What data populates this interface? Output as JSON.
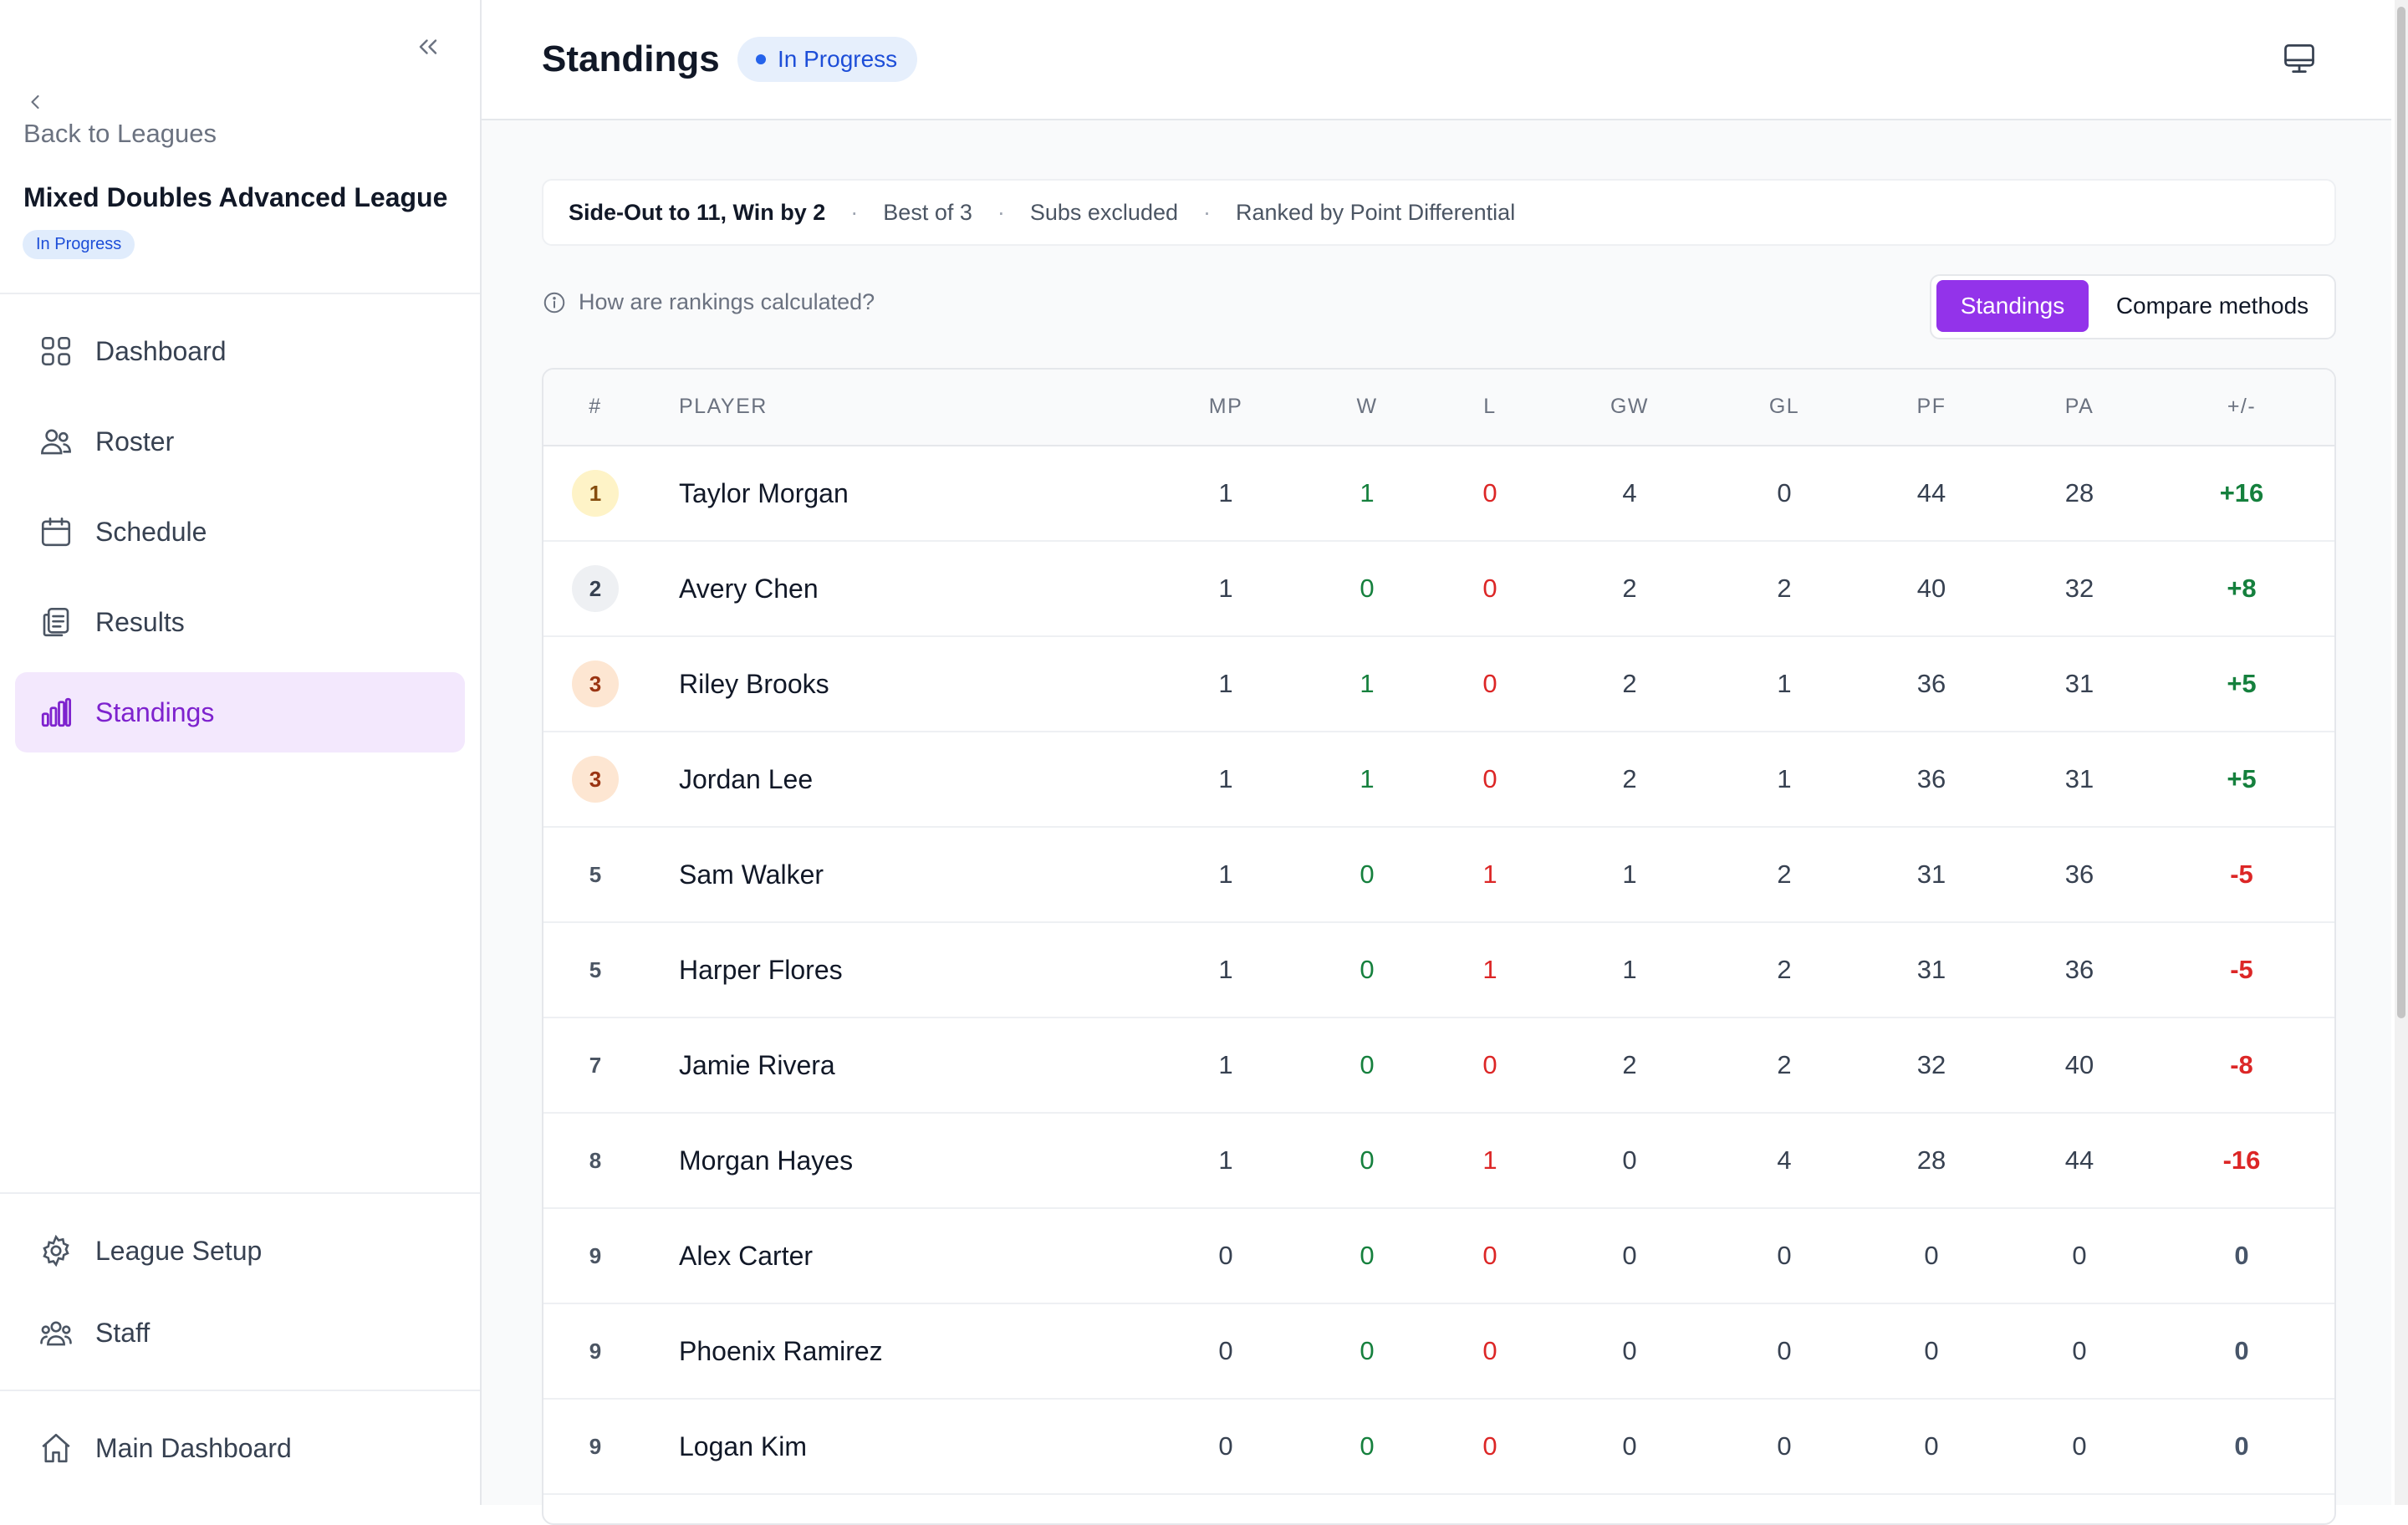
{
  "sidebar": {
    "back_label": "Back to Leagues",
    "league_name": "Mixed Doubles Advanced League",
    "league_status": "In Progress",
    "nav": [
      {
        "label": "Dashboard",
        "icon": "dashboard-icon"
      },
      {
        "label": "Roster",
        "icon": "users-icon"
      },
      {
        "label": "Schedule",
        "icon": "calendar-icon"
      },
      {
        "label": "Results",
        "icon": "clipboard-icon"
      },
      {
        "label": "Standings",
        "icon": "bar-chart-icon",
        "active": true
      }
    ],
    "footer_nav": [
      {
        "label": "League Setup",
        "icon": "gear-icon"
      },
      {
        "label": "Staff",
        "icon": "staff-icon"
      }
    ],
    "main_dashboard": {
      "label": "Main Dashboard",
      "icon": "home-icon"
    }
  },
  "header": {
    "title": "Standings",
    "status": "In Progress"
  },
  "rules": {
    "format": "Side-Out to 11, Win by 2",
    "match": "Best of 3",
    "subs": "Subs excluded",
    "ranking": "Ranked by Point Differential"
  },
  "help_text": "How are rankings calculated?",
  "view_toggle": {
    "standings": "Standings",
    "compare": "Compare methods"
  },
  "table": {
    "headers": [
      "#",
      "PLAYER",
      "MP",
      "W",
      "L",
      "GW",
      "GL",
      "PF",
      "PA",
      "+/-"
    ],
    "rows": [
      {
        "rank": "1",
        "medal": "gold",
        "player": "Taylor Morgan",
        "mp": "1",
        "w": "1",
        "l": "0",
        "gw": "4",
        "gl": "0",
        "pf": "44",
        "pa": "28",
        "diff": "+16"
      },
      {
        "rank": "2",
        "medal": "silver",
        "player": "Avery Chen",
        "mp": "1",
        "w": "0",
        "l": "0",
        "gw": "2",
        "gl": "2",
        "pf": "40",
        "pa": "32",
        "diff": "+8"
      },
      {
        "rank": "3",
        "medal": "bronze",
        "player": "Riley Brooks",
        "mp": "1",
        "w": "1",
        "l": "0",
        "gw": "2",
        "gl": "1",
        "pf": "36",
        "pa": "31",
        "diff": "+5"
      },
      {
        "rank": "3",
        "medal": "bronze",
        "player": "Jordan Lee",
        "mp": "1",
        "w": "1",
        "l": "0",
        "gw": "2",
        "gl": "1",
        "pf": "36",
        "pa": "31",
        "diff": "+5"
      },
      {
        "rank": "5",
        "medal": "plain",
        "player": "Sam Walker",
        "mp": "1",
        "w": "0",
        "l": "1",
        "gw": "1",
        "gl": "2",
        "pf": "31",
        "pa": "36",
        "diff": "-5"
      },
      {
        "rank": "5",
        "medal": "plain",
        "player": "Harper Flores",
        "mp": "1",
        "w": "0",
        "l": "1",
        "gw": "1",
        "gl": "2",
        "pf": "31",
        "pa": "36",
        "diff": "-5"
      },
      {
        "rank": "7",
        "medal": "plain",
        "player": "Jamie Rivera",
        "mp": "1",
        "w": "0",
        "l": "0",
        "gw": "2",
        "gl": "2",
        "pf": "32",
        "pa": "40",
        "diff": "-8"
      },
      {
        "rank": "8",
        "medal": "plain",
        "player": "Morgan Hayes",
        "mp": "1",
        "w": "0",
        "l": "1",
        "gw": "0",
        "gl": "4",
        "pf": "28",
        "pa": "44",
        "diff": "-16"
      },
      {
        "rank": "9",
        "medal": "plain",
        "player": "Alex Carter",
        "mp": "0",
        "w": "0",
        "l": "0",
        "gw": "0",
        "gl": "0",
        "pf": "0",
        "pa": "0",
        "diff": "0"
      },
      {
        "rank": "9",
        "medal": "plain",
        "player": "Phoenix Ramirez",
        "mp": "0",
        "w": "0",
        "l": "0",
        "gw": "0",
        "gl": "0",
        "pf": "0",
        "pa": "0",
        "diff": "0"
      },
      {
        "rank": "9",
        "medal": "plain",
        "player": "Logan Kim",
        "mp": "0",
        "w": "0",
        "l": "0",
        "gw": "0",
        "gl": "0",
        "pf": "0",
        "pa": "0",
        "diff": "0"
      }
    ]
  },
  "colors": {
    "accent": "#9333ea",
    "active_bg": "#f3e8fd",
    "win": "#15803d",
    "loss": "#dc2626",
    "status_blue": "#1d4ed8"
  }
}
